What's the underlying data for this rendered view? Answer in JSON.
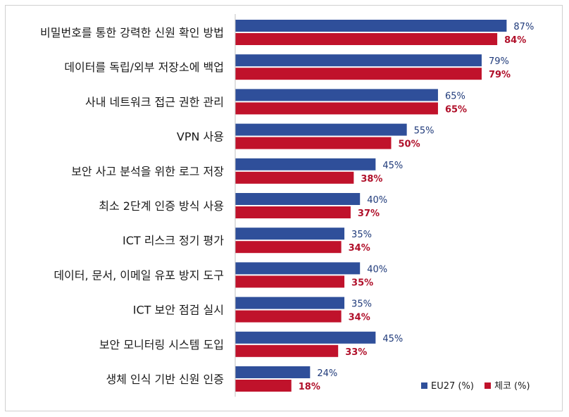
{
  "chart_data": {
    "type": "bar",
    "orientation": "horizontal",
    "categories": [
      "비밀번호를 통한 강력한 신원 확인 방법",
      "데이터를 독립/외부 저장소에 백업",
      "사내 네트워크 접근 권한 관리",
      "VPN 사용",
      "보안 사고 분석을 위한 로그 저장",
      "최소 2단계 인증 방식 사용",
      "ICT 리스크 정기 평가",
      "데이터, 문서, 이메일 유포 방지 도구",
      "ICT 보안 점검 실시",
      "보안 모니터링 시스템 도입",
      "생체 인식 기반 신원 인증"
    ],
    "series": [
      {
        "name": "EU27 (%)",
        "color": "#2f4f9a",
        "values": [
          87,
          79,
          65,
          55,
          45,
          40,
          35,
          40,
          35,
          45,
          24
        ],
        "labels": [
          "87%",
          "79%",
          "65%",
          "55%",
          "45%",
          "40%",
          "35%",
          "40%",
          "35%",
          "45%",
          "24%"
        ]
      },
      {
        "name": "체코 (%)",
        "color": "#c0122b",
        "values": [
          84,
          79,
          65,
          50,
          38,
          37,
          34,
          35,
          34,
          33,
          18
        ],
        "labels": [
          "84%",
          "79%",
          "65%",
          "50%",
          "38%",
          "37%",
          "34%",
          "35%",
          "34%",
          "33%",
          "18%"
        ]
      }
    ],
    "xlim": [
      0,
      100
    ],
    "grid": false,
    "legend": "bottom-right"
  }
}
